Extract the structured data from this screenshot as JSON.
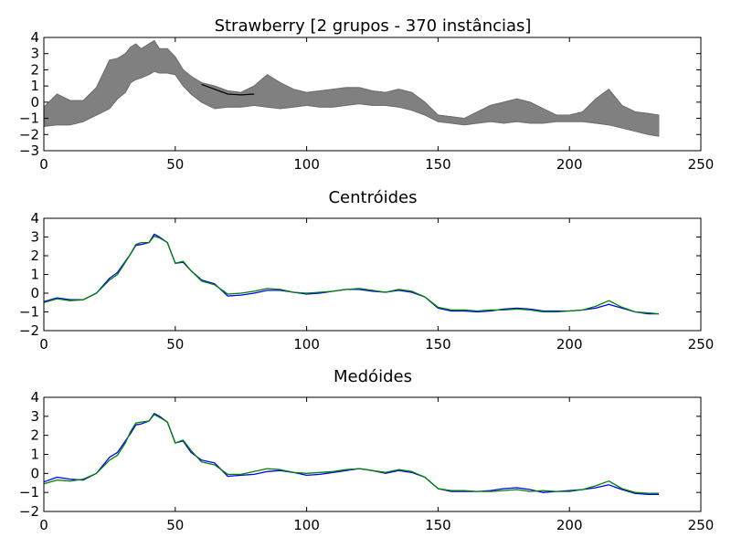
{
  "chart_data": [
    {
      "type": "line",
      "title": "Strawberry [2 grupos - 370 instâncias]",
      "xlim": [
        0,
        250
      ],
      "ylim": [
        -3,
        4
      ],
      "xticks": [
        0,
        50,
        100,
        150,
        200,
        250
      ],
      "yticks": [
        -3,
        -2,
        -1,
        0,
        1,
        2,
        3,
        4
      ],
      "grid": false,
      "series_color": "#808080",
      "highlight_color": "#000000",
      "x": [
        0,
        5,
        10,
        15,
        20,
        25,
        28,
        31,
        33,
        35,
        37,
        40,
        42,
        44,
        47,
        50,
        53,
        56,
        60,
        65,
        70,
        75,
        80,
        85,
        90,
        95,
        100,
        105,
        110,
        115,
        120,
        125,
        130,
        135,
        140,
        145,
        150,
        155,
        160,
        165,
        170,
        175,
        180,
        185,
        190,
        195,
        200,
        205,
        210,
        215,
        220,
        225,
        230,
        234
      ],
      "envelope": [
        {
          "name": "upper",
          "values": [
            -0.3,
            0.5,
            0.1,
            0.1,
            0.9,
            2.6,
            2.7,
            3.0,
            3.4,
            3.6,
            3.3,
            3.6,
            3.8,
            3.3,
            3.3,
            2.8,
            2.0,
            1.6,
            1.2,
            1.0,
            0.7,
            0.6,
            1.0,
            1.7,
            1.2,
            0.8,
            0.6,
            0.7,
            0.8,
            0.9,
            0.9,
            0.7,
            0.6,
            0.8,
            0.6,
            0.0,
            -0.8,
            -0.9,
            -1.0,
            -0.6,
            -0.2,
            0.0,
            0.2,
            0.0,
            -0.4,
            -0.8,
            -0.8,
            -0.6,
            0.2,
            0.8,
            -0.2,
            -0.6,
            -0.7,
            -0.8
          ]
        },
        {
          "name": "lower",
          "values": [
            -1.5,
            -1.4,
            -1.4,
            -1.2,
            -0.8,
            -0.4,
            0.2,
            0.6,
            1.2,
            1.4,
            1.5,
            1.7,
            1.9,
            1.8,
            1.8,
            1.7,
            1.0,
            0.5,
            0.0,
            -0.4,
            -0.3,
            -0.3,
            -0.2,
            -0.3,
            -0.4,
            -0.3,
            -0.2,
            -0.3,
            -0.3,
            -0.2,
            -0.1,
            -0.2,
            -0.2,
            -0.3,
            -0.5,
            -0.8,
            -1.2,
            -1.3,
            -1.4,
            -1.3,
            -1.2,
            -1.3,
            -1.2,
            -1.3,
            -1.3,
            -1.2,
            -1.2,
            -1.2,
            -1.3,
            -1.4,
            -1.6,
            -1.8,
            -2.0,
            -2.1
          ]
        }
      ],
      "highlight_segment": {
        "x": [
          60,
          65,
          70,
          75,
          80
        ],
        "values": [
          1.1,
          0.8,
          0.5,
          0.45,
          0.5
        ]
      }
    },
    {
      "type": "line",
      "title": "Centróides",
      "xlim": [
        0,
        250
      ],
      "ylim": [
        -2,
        4
      ],
      "xticks": [
        0,
        50,
        100,
        150,
        200,
        250
      ],
      "yticks": [
        -2,
        -1,
        0,
        1,
        2,
        3,
        4
      ],
      "grid": false,
      "x": [
        0,
        5,
        10,
        15,
        20,
        25,
        28,
        31,
        33,
        35,
        37,
        40,
        42,
        44,
        47,
        50,
        53,
        56,
        60,
        65,
        70,
        75,
        80,
        85,
        90,
        95,
        100,
        105,
        110,
        115,
        120,
        125,
        130,
        135,
        140,
        145,
        150,
        155,
        160,
        165,
        170,
        175,
        180,
        185,
        190,
        195,
        200,
        205,
        210,
        215,
        220,
        225,
        230,
        234
      ],
      "series": [
        {
          "color": "#0000ff",
          "values": [
            -0.45,
            -0.25,
            -0.35,
            -0.35,
            0.0,
            0.8,
            1.1,
            1.7,
            2.1,
            2.55,
            2.6,
            2.7,
            3.15,
            3.0,
            2.7,
            1.6,
            1.65,
            1.2,
            0.7,
            0.5,
            -0.15,
            -0.1,
            0.0,
            0.15,
            0.15,
            0.05,
            -0.05,
            0.0,
            0.1,
            0.2,
            0.2,
            0.1,
            0.05,
            0.15,
            0.05,
            -0.2,
            -0.8,
            -0.95,
            -0.95,
            -1.0,
            -0.95,
            -0.85,
            -0.8,
            -0.85,
            -0.95,
            -0.95,
            -0.95,
            -0.9,
            -0.8,
            -0.6,
            -0.8,
            -1.0,
            -1.1,
            -1.1
          ]
        },
        {
          "color": "#008000",
          "values": [
            -0.5,
            -0.3,
            -0.4,
            -0.35,
            0.0,
            0.7,
            1.0,
            1.65,
            2.1,
            2.6,
            2.7,
            2.7,
            3.05,
            2.95,
            2.7,
            1.6,
            1.7,
            1.2,
            0.65,
            0.45,
            -0.05,
            0.0,
            0.1,
            0.25,
            0.2,
            0.05,
            0.0,
            0.05,
            0.1,
            0.2,
            0.25,
            0.15,
            0.05,
            0.2,
            0.1,
            -0.2,
            -0.75,
            -0.9,
            -0.9,
            -0.95,
            -0.9,
            -0.9,
            -0.85,
            -0.9,
            -1.0,
            -1.0,
            -0.95,
            -0.9,
            -0.7,
            -0.4,
            -0.75,
            -1.0,
            -1.05,
            -1.1
          ]
        }
      ]
    },
    {
      "type": "line",
      "title": "Medóides",
      "xlim": [
        0,
        250
      ],
      "ylim": [
        -2,
        4
      ],
      "xticks": [
        0,
        50,
        100,
        150,
        200,
        250
      ],
      "yticks": [
        -2,
        -1,
        0,
        1,
        2,
        3,
        4
      ],
      "grid": false,
      "x": [
        0,
        5,
        10,
        15,
        20,
        25,
        28,
        31,
        33,
        35,
        37,
        40,
        42,
        44,
        47,
        50,
        53,
        56,
        60,
        65,
        70,
        75,
        80,
        85,
        90,
        95,
        100,
        105,
        110,
        115,
        120,
        125,
        130,
        135,
        140,
        145,
        150,
        155,
        160,
        165,
        170,
        175,
        180,
        185,
        190,
        195,
        200,
        205,
        210,
        215,
        220,
        225,
        230,
        234
      ],
      "series": [
        {
          "color": "#0000ff",
          "values": [
            -0.45,
            -0.2,
            -0.3,
            -0.35,
            0.0,
            0.85,
            1.1,
            1.7,
            2.1,
            2.55,
            2.6,
            2.75,
            3.15,
            3.0,
            2.7,
            1.6,
            1.7,
            1.1,
            0.7,
            0.55,
            -0.15,
            -0.1,
            -0.05,
            0.1,
            0.15,
            0.05,
            -0.1,
            -0.05,
            0.05,
            0.15,
            0.25,
            0.15,
            0.0,
            0.15,
            0.05,
            -0.2,
            -0.8,
            -0.95,
            -0.95,
            -0.95,
            -0.9,
            -0.8,
            -0.75,
            -0.85,
            -1.0,
            -0.95,
            -0.9,
            -0.85,
            -0.75,
            -0.6,
            -0.85,
            -1.05,
            -1.1,
            -1.1
          ]
        },
        {
          "color": "#008000",
          "values": [
            -0.55,
            -0.35,
            -0.4,
            -0.3,
            0.0,
            0.7,
            0.95,
            1.6,
            2.2,
            2.65,
            2.7,
            2.75,
            3.1,
            2.95,
            2.7,
            1.6,
            1.75,
            1.2,
            0.6,
            0.45,
            -0.05,
            -0.05,
            0.1,
            0.25,
            0.2,
            0.05,
            0.0,
            0.05,
            0.1,
            0.2,
            0.25,
            0.15,
            0.05,
            0.2,
            0.1,
            -0.2,
            -0.8,
            -0.9,
            -0.9,
            -0.95,
            -0.95,
            -0.9,
            -0.85,
            -0.95,
            -0.9,
            -0.95,
            -0.95,
            -0.85,
            -0.65,
            -0.4,
            -0.8,
            -1.0,
            -1.05,
            -1.05
          ]
        }
      ]
    }
  ]
}
